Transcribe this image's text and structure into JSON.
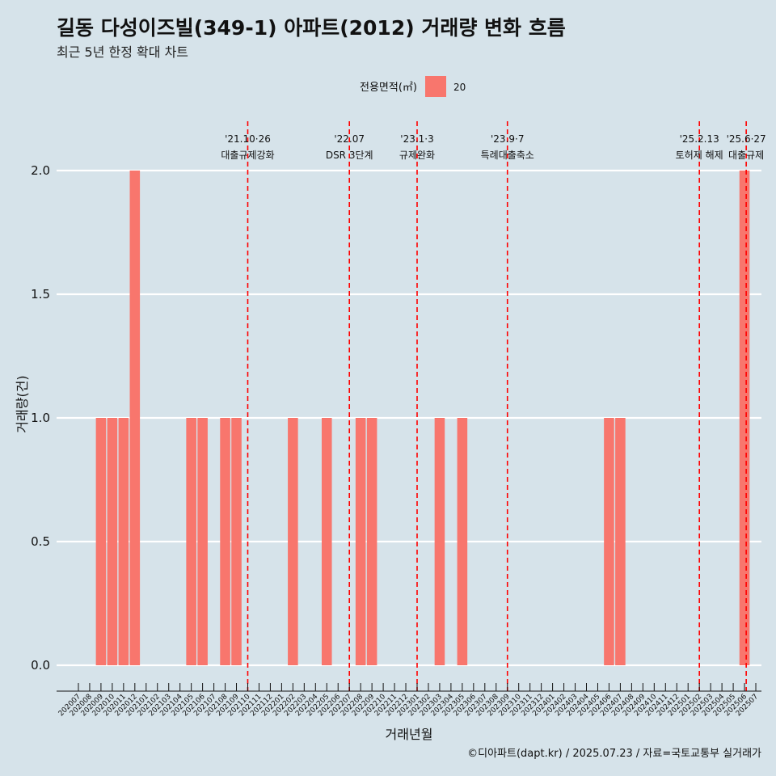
{
  "title": "길동 다성이즈빌(349-1) 아파트(2012) 거래량 변화 흐름",
  "subtitle": "최근 5년 한정 확대 차트",
  "legend": {
    "title": "전용면적(㎡)",
    "items": [
      {
        "label": "20",
        "color": "#f8766d"
      }
    ]
  },
  "caption": "©디아파트(dapt.kr) / 2025.07.23 / 자료=국토교통부 실거래가",
  "colors": {
    "background": "#d6e3ea",
    "bar": "#f8766d",
    "event_line": "#ff0000",
    "grid": "#ffffff"
  },
  "chart_data": {
    "type": "bar",
    "xlabel": "거래년월",
    "ylabel": "거래량(건)",
    "ylim": [
      0,
      2
    ],
    "yticks": [
      "0.0",
      "0.5",
      "1.0",
      "1.5",
      "2.0"
    ],
    "grid": true,
    "legend_position": "top",
    "categories": [
      "202007",
      "202008",
      "202009",
      "202010",
      "202011",
      "202012",
      "202101",
      "202102",
      "202103",
      "202104",
      "202105",
      "202106",
      "202107",
      "202108",
      "202109",
      "202110",
      "202111",
      "202112",
      "202201",
      "202202",
      "202203",
      "202204",
      "202205",
      "202206",
      "202207",
      "202208",
      "202209",
      "202210",
      "202211",
      "202212",
      "202301",
      "202302",
      "202303",
      "202304",
      "202305",
      "202306",
      "202307",
      "202308",
      "202309",
      "202310",
      "202311",
      "202312",
      "202401",
      "202402",
      "202403",
      "202404",
      "202405",
      "202406",
      "202407",
      "202408",
      "202409",
      "202410",
      "202411",
      "202412",
      "202501",
      "202502",
      "202503",
      "202504",
      "202505",
      "202506",
      "202507"
    ],
    "series": [
      {
        "name": "20",
        "values": [
          0,
          0,
          1,
          1,
          1,
          2,
          0,
          0,
          0,
          0,
          1,
          1,
          0,
          1,
          1,
          0,
          0,
          0,
          0,
          1,
          0,
          0,
          1,
          0,
          0,
          1,
          1,
          0,
          0,
          0,
          0,
          0,
          1,
          0,
          1,
          0,
          0,
          0,
          0,
          0,
          0,
          0,
          0,
          0,
          0,
          0,
          0,
          1,
          1,
          0,
          0,
          0,
          0,
          0,
          0,
          0,
          0,
          0,
          0,
          2,
          0
        ]
      }
    ],
    "events": [
      {
        "at": "202110",
        "date": "'21.10·26",
        "label": "대출규제강화"
      },
      {
        "at": "202207",
        "date": "'22.07",
        "label": "DSR 3단계"
      },
      {
        "at": "202301",
        "date": "'23.1·3",
        "label": "규제완화"
      },
      {
        "at": "202309",
        "date": "'23.9·7",
        "label": "특례대출축소"
      },
      {
        "at": "202502",
        "date": "'25.2.13",
        "label": "토허제 해제"
      },
      {
        "at": "202506",
        "date": "'25.6·27",
        "label": "대출규제"
      }
    ]
  }
}
